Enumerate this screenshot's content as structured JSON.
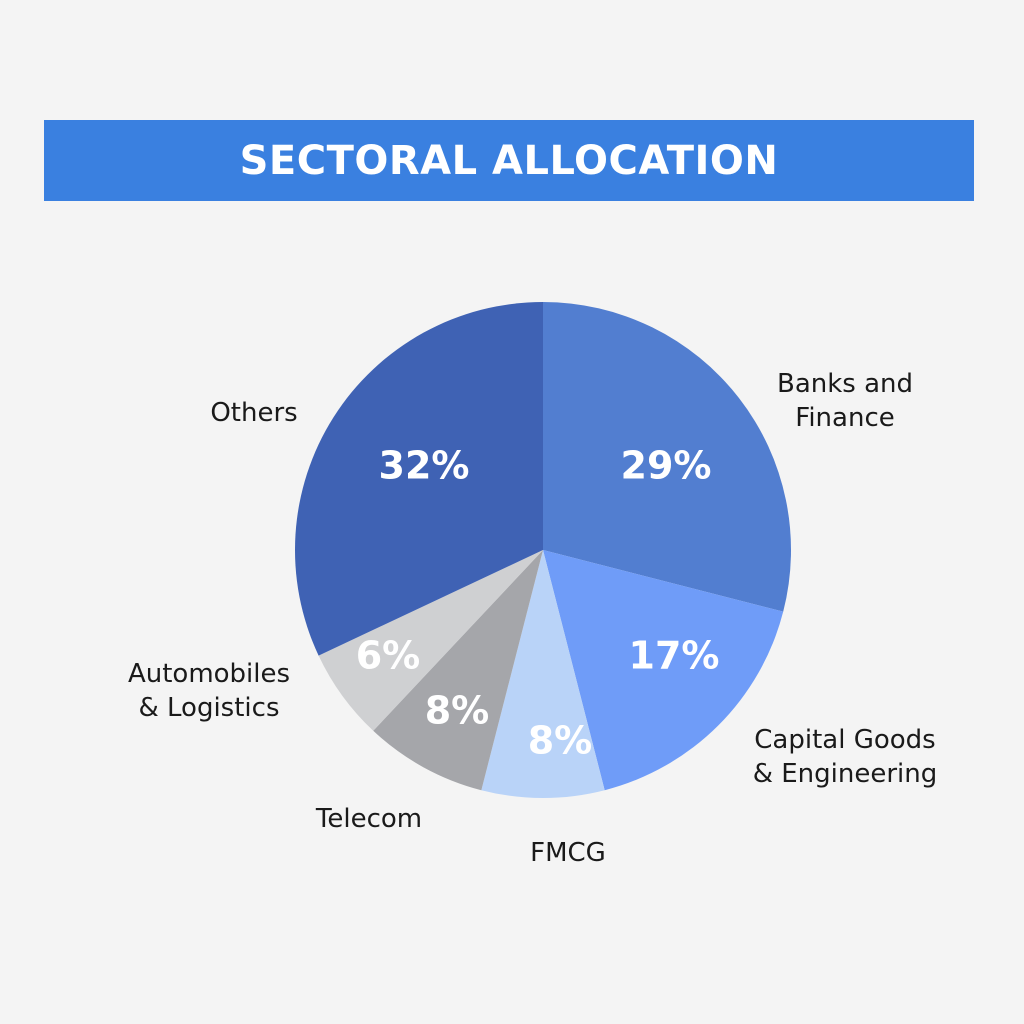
{
  "title": "SECTORAL ALLOCATION",
  "chart_data": {
    "type": "pie",
    "title": "SECTORAL ALLOCATION",
    "slices": [
      {
        "label": "Banks and Finance",
        "label_lines": [
          "Banks and",
          "Finance"
        ],
        "value": 29,
        "value_label": "29%",
        "color": "#527ed0"
      },
      {
        "label": "Capital Goods & Engineering",
        "label_lines": [
          "Capital Goods",
          "& Engineering"
        ],
        "value": 17,
        "value_label": "17%",
        "color": "#6f9cf8"
      },
      {
        "label": "FMCG",
        "label_lines": [
          "FMCG"
        ],
        "value": 8,
        "value_label": "8%",
        "color": "#b9d3f8"
      },
      {
        "label": "Telecom",
        "label_lines": [
          "Telecom"
        ],
        "value": 8,
        "value_label": "8%",
        "color": "#a5a6aa"
      },
      {
        "label": "Automobiles & Logistics",
        "label_lines": [
          "Automobiles",
          "& Logistics"
        ],
        "value": 6,
        "value_label": "6%",
        "color": "#cfd0d2"
      },
      {
        "label": "Others",
        "label_lines": [
          "Others"
        ],
        "value": 32,
        "value_label": "32%",
        "color": "#3f62b4"
      }
    ]
  }
}
